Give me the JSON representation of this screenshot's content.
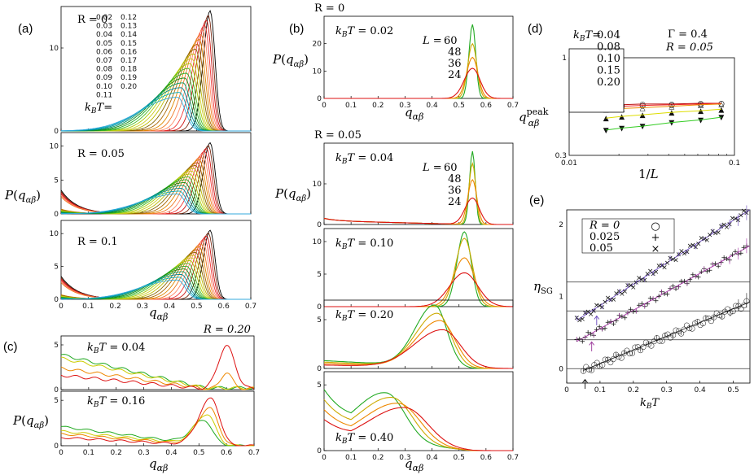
{
  "figure_panels": {
    "a": {
      "label": "(a)",
      "kbt_prefix": "k_BT=",
      "kbt_values": [
        "0.02",
        "0.03",
        "0.04",
        "0.05",
        "0.06",
        "0.07",
        "0.08",
        "0.09",
        "0.10",
        "0.11",
        "0.12",
        "0.13",
        "0.14",
        "0.15",
        "0.16",
        "0.17",
        "0.18",
        "0.19",
        "0.20"
      ],
      "kbt_colors": [
        "#000000",
        "#7a2a12",
        "#cc1111",
        "#ee3333",
        "#ff8866",
        "#ee7722",
        "#dd8800",
        "#aa6600",
        "#886600",
        "#bbbb00",
        "#cccc22",
        "#aacc00",
        "#44bb22",
        "#22aa22",
        "#118811",
        "#009966",
        "#008899",
        "#00aabb",
        "#33aadd"
      ]
    },
    "b": {
      "label": "(b)"
    },
    "c": {
      "label": "(c)",
      "R_label": "R = 0.20"
    },
    "d": {
      "label": "(d)"
    },
    "e": {
      "label": "(e)"
    }
  },
  "chart_data": [
    {
      "id": "a",
      "type": "line",
      "xlabel": "q_{αβ}",
      "ylabel": "P(q_{αβ})",
      "xlim": [
        0,
        0.7
      ],
      "xticks": [
        "0",
        "0.1",
        "0.2",
        "0.3",
        "0.4",
        "0.5",
        "0.6",
        "0.7"
      ],
      "subplots": [
        {
          "R": "R = 0",
          "ylim": [
            0,
            15
          ],
          "yticks": [
            "0",
            "10"
          ]
        },
        {
          "R": "R = 0.05",
          "ylim": [
            0,
            12
          ],
          "yticks": [
            "0",
            "5",
            "10"
          ]
        },
        {
          "R": "R = 0.1",
          "ylim": [
            0,
            12
          ],
          "yticks": [
            "0",
            "5",
            "10"
          ]
        }
      ]
    },
    {
      "id": "b",
      "type": "line",
      "xlabel": "q_{αβ}",
      "ylabel": "P(q_{αβ})",
      "xlim": [
        0,
        0.7
      ],
      "xticks": [
        "0",
        "0.1",
        "0.2",
        "0.3",
        "0.4",
        "0.5",
        "0.6",
        "0.7"
      ],
      "L_values": [
        "60",
        "48",
        "36",
        "24"
      ],
      "L_colors": [
        "#22aa22",
        "#ccaa00",
        "#ee8800",
        "#dd1111"
      ],
      "subplots": [
        {
          "R": "R = 0",
          "kbt": "k_BT = 0.02",
          "ylim": [
            0,
            30
          ],
          "yticks": [
            "0",
            "10",
            "20"
          ]
        },
        {
          "R": "R = 0.05",
          "kbt": "k_BT = 0.04",
          "ylim": [
            0,
            20
          ],
          "yticks": [
            "0",
            "10"
          ]
        },
        {
          "kbt": "k_BT = 0.10",
          "ylim": [
            0,
            12
          ],
          "yticks": [
            "0",
            "5",
            "10"
          ]
        },
        {
          "kbt": "k_BT = 0.20",
          "ylim": [
            0,
            7
          ],
          "yticks": [
            "0",
            "5"
          ]
        },
        {
          "kbt": "k_BT = 0.40",
          "ylim": [
            0,
            6
          ],
          "yticks": [
            "0",
            "5"
          ]
        }
      ]
    },
    {
      "id": "c",
      "type": "line",
      "xlabel": "q_{αβ}",
      "ylabel": "P(q_{αβ})",
      "xlim": [
        0,
        0.7
      ],
      "xticks": [
        "0",
        "0.1",
        "0.2",
        "0.3",
        "0.4",
        "0.5",
        "0.6",
        "0.7"
      ],
      "subplots": [
        {
          "kbt": "k_BT = 0.04",
          "ylim": [
            0,
            6
          ],
          "yticks": [
            "0",
            "5"
          ]
        },
        {
          "kbt": "k_BT = 0.16",
          "ylim": [
            0,
            6
          ],
          "yticks": [
            "0",
            "5"
          ]
        }
      ]
    },
    {
      "id": "d",
      "type": "scatter",
      "xlabel": "1/L",
      "ylabel": "q^{peak}_{αβ}",
      "log_x": true,
      "log_y": true,
      "xticks": [
        "0.01",
        "0.1"
      ],
      "yticks": [
        "0.3",
        "1"
      ],
      "Gamma": "Γ = 0.4",
      "R": "R = 0.05",
      "kbt_prefix": "k_BT=",
      "x": [
        0.0167,
        0.0208,
        0.0278,
        0.0417,
        0.0625,
        0.0833
      ],
      "series": [
        {
          "name": "0.04",
          "color": "#bb1111",
          "values": [
            0.56,
            0.56,
            0.565,
            0.565,
            0.57,
            0.57
          ]
        },
        {
          "name": "0.08",
          "color": "#ee2222",
          "values": [
            0.55,
            0.55,
            0.555,
            0.56,
            0.565,
            0.57
          ]
        },
        {
          "name": "0.10",
          "color": "#ee8800",
          "values": [
            0.53,
            0.535,
            0.54,
            0.55,
            0.56,
            0.565
          ]
        },
        {
          "name": "0.15",
          "color": "#dddd00",
          "values": [
            0.475,
            0.485,
            0.495,
            0.51,
            0.52,
            0.53
          ]
        },
        {
          "name": "0.20",
          "color": "#33cc22",
          "values": [
            0.41,
            0.42,
            0.43,
            0.45,
            0.465,
            0.48
          ]
        }
      ]
    },
    {
      "id": "e",
      "type": "scatter",
      "xlabel": "k_BT",
      "ylabel": "η_SG",
      "xlim": [
        0,
        0.55
      ],
      "ylim": [
        -0.2,
        2.2
      ],
      "xticks": [
        "0",
        "0.1",
        "0.2",
        "0.3",
        "0.4",
        "0.5"
      ],
      "yticks": [
        "0",
        "1",
        "2"
      ],
      "legend": [
        {
          "name": "R = 0",
          "marker": "○",
          "color": "#aa2222"
        },
        {
          "name": "0.025",
          "marker": "+",
          "color": "#993399"
        },
        {
          "name": "0.05",
          "marker": "×",
          "color": "#3333aa"
        }
      ],
      "series": [
        {
          "name": "R = 0",
          "color": "#222222",
          "intercept": -0.12,
          "slope": 1.9,
          "xmin": 0.05
        },
        {
          "name": "0.025",
          "color": "#aa33aa",
          "intercept": 0.3,
          "slope": 2.55,
          "xmin": 0.03
        },
        {
          "name": "0.05",
          "color": "#6644bb",
          "intercept": 0.58,
          "slope": 2.95,
          "xmin": 0.03
        }
      ],
      "hlines": [
        0,
        0.4,
        0.8,
        1.2
      ]
    }
  ]
}
